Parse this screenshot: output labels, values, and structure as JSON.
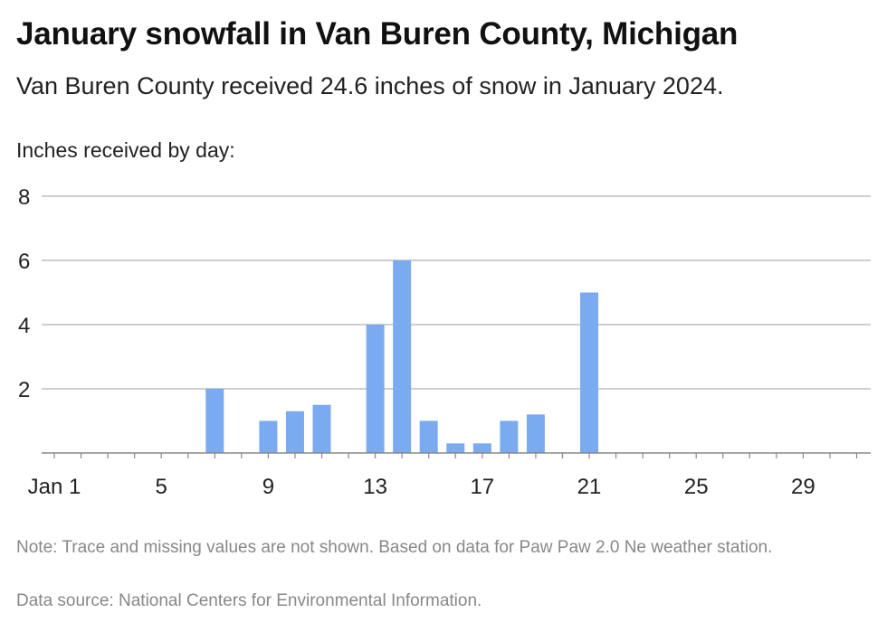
{
  "title": "January snowfall in Van Buren County, Michigan",
  "subtitle": "Van Buren County received 24.6 inches of snow in January 2024.",
  "y_axis_label": "Inches received by day:",
  "note": "Note: Trace and missing values are not shown. Based on data for Paw Paw 2.0 Ne weather station.",
  "source": "Data source: National Centers for Environmental Information.",
  "colors": {
    "bar": "#7aaaf0",
    "grid": "#bdbdbd",
    "axis": "#888888"
  },
  "chart_data": {
    "type": "bar",
    "title": "January snowfall in Van Buren County, Michigan",
    "ylabel": "Inches received by day:",
    "xlabel": "",
    "categories": [
      1,
      2,
      3,
      4,
      5,
      6,
      7,
      8,
      9,
      10,
      11,
      12,
      13,
      14,
      15,
      16,
      17,
      18,
      19,
      20,
      21,
      22,
      23,
      24,
      25,
      26,
      27,
      28,
      29,
      30,
      31
    ],
    "values": [
      0,
      0,
      0,
      0,
      0,
      0,
      2,
      0,
      1,
      1.3,
      1.5,
      0,
      4,
      6,
      1,
      0.3,
      0.3,
      1,
      1.2,
      0,
      5,
      0,
      0,
      0,
      0,
      0,
      0,
      0,
      0,
      0,
      0
    ],
    "x_ticks": [
      {
        "value": 1,
        "label": "Jan 1"
      },
      {
        "value": 5,
        "label": "5"
      },
      {
        "value": 9,
        "label": "9"
      },
      {
        "value": 13,
        "label": "13"
      },
      {
        "value": 17,
        "label": "17"
      },
      {
        "value": 21,
        "label": "21"
      },
      {
        "value": 25,
        "label": "25"
      },
      {
        "value": 29,
        "label": "29"
      }
    ],
    "y_ticks": [
      2,
      4,
      6,
      8
    ],
    "ylim": [
      0,
      8
    ],
    "grid": true
  }
}
